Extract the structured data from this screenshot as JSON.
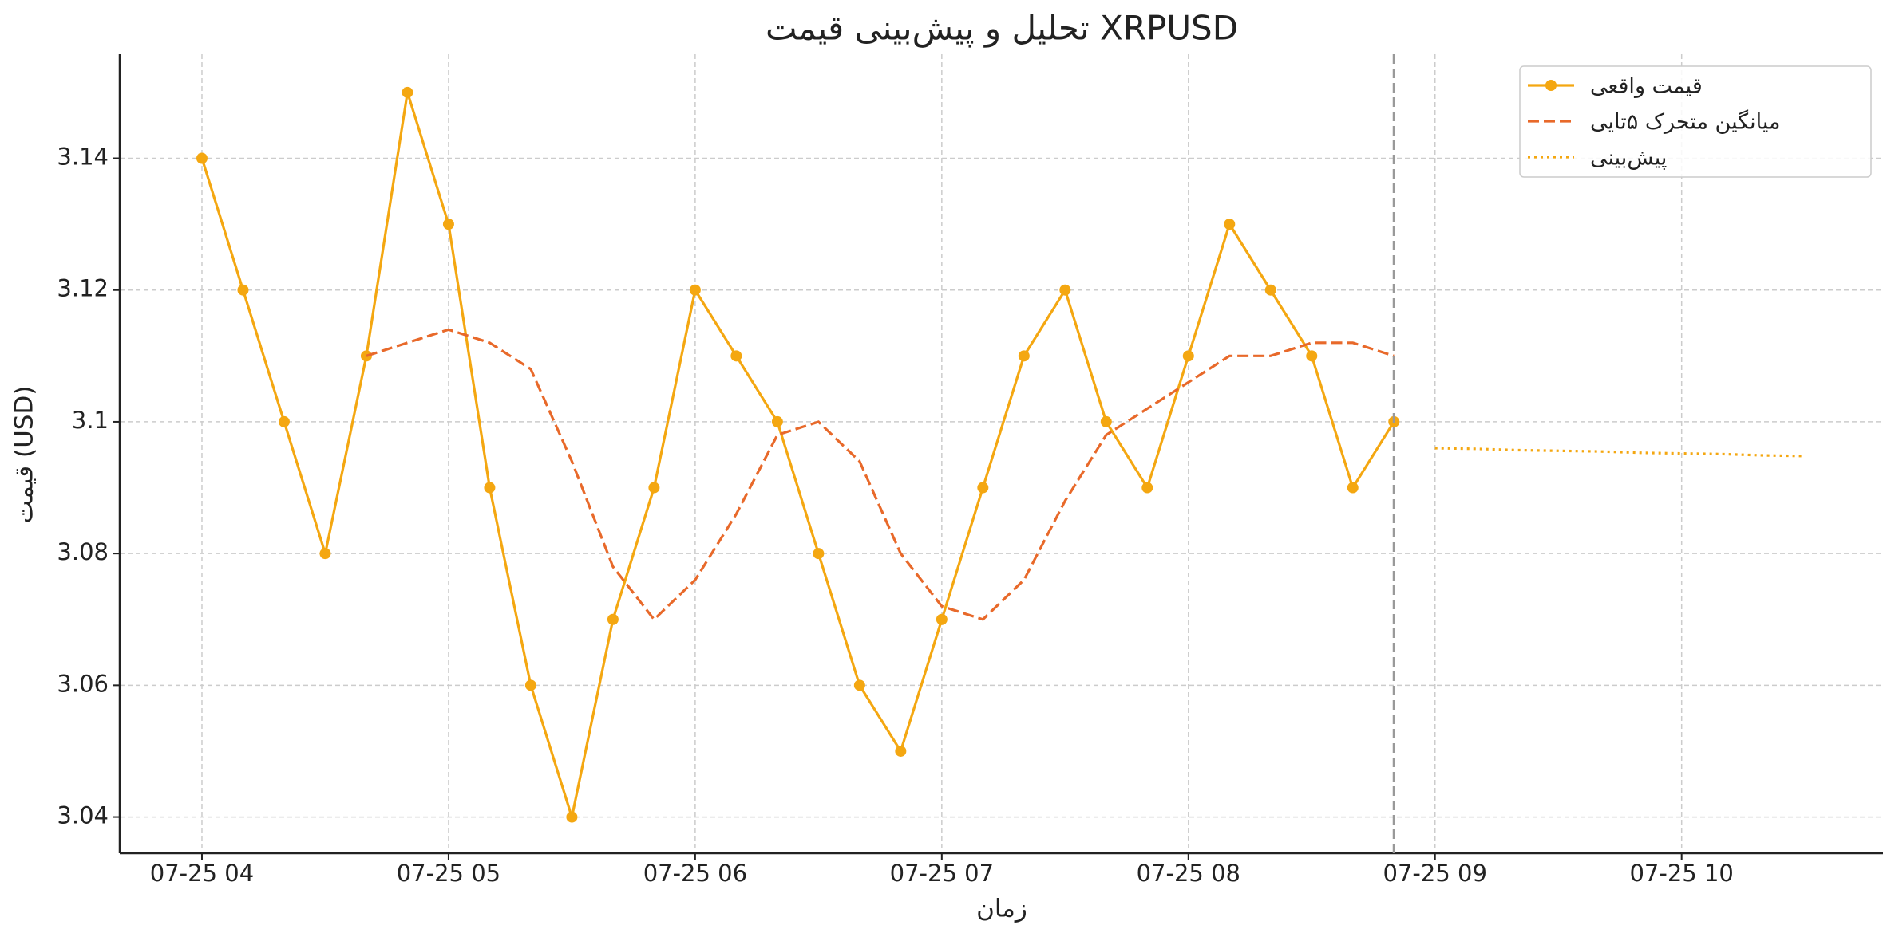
{
  "chart_data": {
    "type": "line",
    "title": "تحلیل و پیش‌بینی قیمت XRPUSD",
    "x_label": "زمان",
    "y_label": "قیمت (USD)",
    "x": [
      "07-25 04:00",
      "07-25 04:10",
      "07-25 04:20",
      "07-25 04:30",
      "07-25 04:40",
      "07-25 04:50",
      "07-25 05:00",
      "07-25 05:10",
      "07-25 05:20",
      "07-25 05:30",
      "07-25 05:40",
      "07-25 05:50",
      "07-25 06:00",
      "07-25 06:10",
      "07-25 06:20",
      "07-25 06:30",
      "07-25 06:40",
      "07-25 06:50",
      "07-25 07:00",
      "07-25 07:10",
      "07-25 07:20",
      "07-25 07:30",
      "07-25 07:40",
      "07-25 07:50",
      "07-25 08:00",
      "07-25 08:10",
      "07-25 08:20",
      "07-25 08:30",
      "07-25 08:40",
      "07-25 08:50"
    ],
    "series": [
      {
        "name": "قیمت واقعی",
        "color": "#f4a711",
        "style": "solid",
        "marker": true,
        "values": [
          3.14,
          3.12,
          3.1,
          3.08,
          3.11,
          3.15,
          3.13,
          3.09,
          3.06,
          3.04,
          3.07,
          3.09,
          3.12,
          3.11,
          3.1,
          3.08,
          3.06,
          3.05,
          3.07,
          3.09,
          3.11,
          3.12,
          3.1,
          3.09,
          3.11,
          3.13,
          3.12,
          3.11,
          3.09,
          3.1
        ]
      },
      {
        "name": "میانگین متحرک ۵تایی",
        "color": "#e8692a",
        "style": "dashed",
        "marker": false,
        "values": [
          null,
          null,
          null,
          null,
          3.11,
          3.112,
          3.114,
          3.112,
          3.108,
          3.094,
          3.078,
          3.07,
          3.076,
          3.086,
          3.098,
          3.1,
          3.094,
          3.08,
          3.072,
          3.07,
          3.076,
          3.088,
          3.098,
          3.102,
          3.106,
          3.11,
          3.11,
          3.112,
          3.112,
          3.11
        ]
      },
      {
        "name": "پیش‌بینی",
        "color": "#f4a711",
        "style": "dotted",
        "marker": false,
        "x": [
          "07-25 09:00",
          "07-25 09:10",
          "07-25 09:20",
          "07-25 09:30",
          "07-25 09:40",
          "07-25 09:50",
          "07-25 10:00",
          "07-25 10:10",
          "07-25 10:20",
          "07-25 10:30"
        ],
        "values": [
          3.096,
          3.0959,
          3.0957,
          3.0956,
          3.0955,
          3.0953,
          3.0952,
          3.0951,
          3.0949,
          3.0948
        ]
      }
    ],
    "xlim": [
      "07-25 03:40",
      "07-25 10:49"
    ],
    "xticks": [
      {
        "value": "07-25 04:00",
        "label": "07-25 04"
      },
      {
        "value": "07-25 05:00",
        "label": "07-25 05"
      },
      {
        "value": "07-25 06:00",
        "label": "07-25 06"
      },
      {
        "value": "07-25 07:00",
        "label": "07-25 07"
      },
      {
        "value": "07-25 08:00",
        "label": "07-25 08"
      },
      {
        "value": "07-25 09:00",
        "label": "07-25 09"
      },
      {
        "value": "07-25 10:00",
        "label": "07-25 10"
      }
    ],
    "ylim": [
      3.0345,
      3.1558
    ],
    "yticks": [
      3.04,
      3.06,
      3.08,
      3.1,
      3.12,
      3.14
    ],
    "grid": true,
    "legend": "upper right"
  }
}
